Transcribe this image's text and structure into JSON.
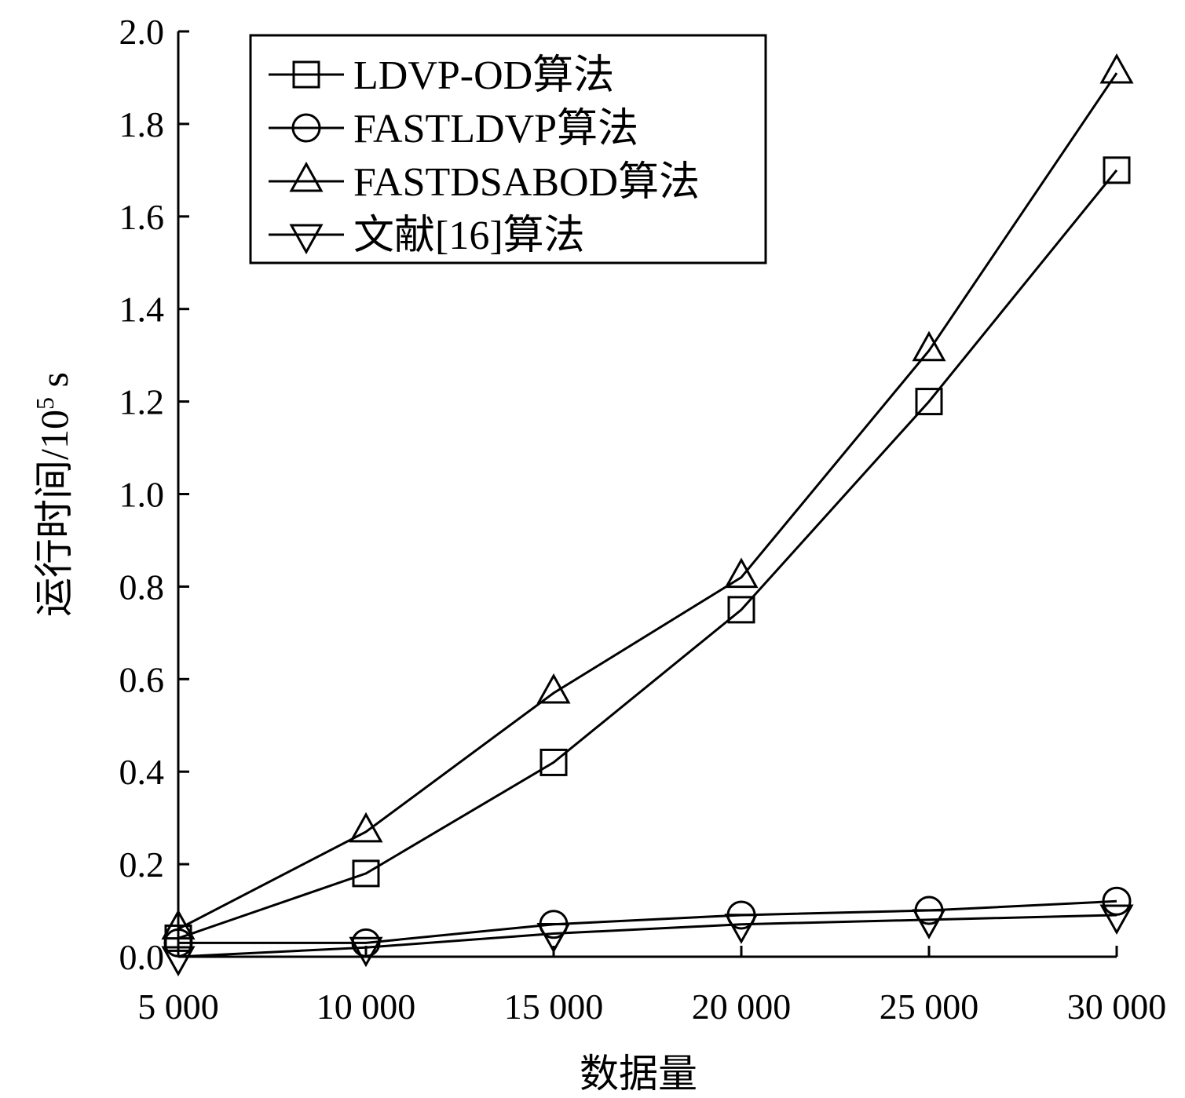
{
  "chart_data": {
    "type": "line",
    "xlabel": "数据量",
    "ylabel": "运行时间/10",
    "ylabel_superscript": "5",
    "ylabel_unit": " s",
    "x": [
      5000,
      10000,
      15000,
      20000,
      25000,
      30000
    ],
    "x_tick_labels": [
      "5 000",
      "10 000",
      "15 000",
      "20 000",
      "25 000",
      "30 000"
    ],
    "xlim": [
      5000,
      30000
    ],
    "ylim": [
      0.0,
      2.0
    ],
    "y_ticks": [
      0.0,
      0.2,
      0.4,
      0.6,
      0.8,
      1.0,
      1.2,
      1.4,
      1.6,
      1.8,
      2.0
    ],
    "y_tick_labels": [
      "0.0",
      "0.2",
      "0.4",
      "0.6",
      "0.8",
      "1.0",
      "1.2",
      "1.4",
      "1.6",
      "1.8",
      "2.0"
    ],
    "grid": false,
    "legend_position": "top-left",
    "series": [
      {
        "name": "LDVP-OD算法",
        "marker": "square",
        "values": [
          0.04,
          0.18,
          0.42,
          0.75,
          1.2,
          1.7
        ]
      },
      {
        "name": "FASTLDVP算法",
        "marker": "circle",
        "values": [
          0.03,
          0.03,
          0.07,
          0.09,
          0.1,
          0.12
        ]
      },
      {
        "name": "FASTDSABOD算法",
        "marker": "triangle-up",
        "values": [
          0.06,
          0.27,
          0.57,
          0.82,
          1.31,
          1.91
        ]
      },
      {
        "name": "文献[16]算法",
        "marker": "triangle-down",
        "values": [
          0.0,
          0.02,
          0.05,
          0.07,
          0.08,
          0.09
        ]
      }
    ],
    "colors": {
      "line": "#000000",
      "background": "#ffffff"
    }
  }
}
